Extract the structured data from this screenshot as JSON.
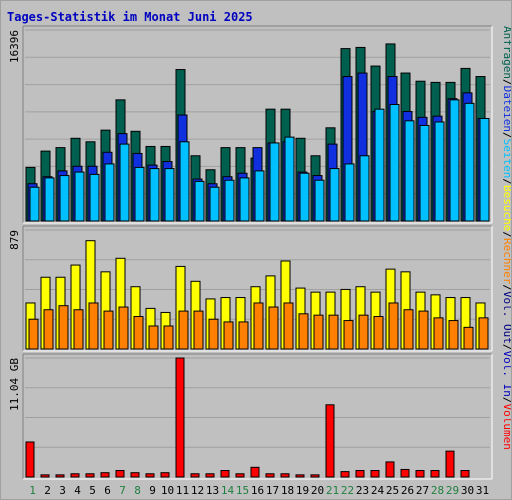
{
  "chart_data": {
    "type": "bar",
    "title": "Tages-Statistik im Monat Juni 2025",
    "colors": {
      "anfragen": "#006050",
      "dateien": "#1030e0",
      "seiten": "#00c0ff",
      "besuche": "#ffff00",
      "rechner": "#ff8000",
      "volumen": "#ff0000",
      "title": "#0000c0",
      "weekend_label": "#208040",
      "weekday_label": "#000000"
    },
    "categories": [
      "1",
      "2",
      "3",
      "4",
      "5",
      "6",
      "7",
      "8",
      "9",
      "10",
      "11",
      "12",
      "13",
      "14",
      "15",
      "16",
      "17",
      "18",
      "19",
      "20",
      "21",
      "22",
      "23",
      "24",
      "25",
      "26",
      "27",
      "28",
      "29",
      "30",
      "31"
    ],
    "weekend_days": [
      "1",
      "7",
      "8",
      "14",
      "15",
      "21",
      "22",
      "28",
      "29"
    ],
    "panels": [
      {
        "id": "top",
        "ymax_label": "16396",
        "ymax": 16396,
        "series": [
          {
            "name": "Anfragen",
            "values": [
              4600,
              6000,
              6300,
              7100,
              6800,
              7800,
              10400,
              7700,
              6400,
              6400,
              13000,
              5600,
              4400,
              6300,
              6300,
              5400,
              9600,
              9600,
              7100,
              5600,
              8000,
              14800,
              14900,
              13300,
              15200,
              12700,
              12000,
              11900,
              11900,
              13100,
              12400
            ]
          },
          {
            "name": "Dateien",
            "values": [
              3200,
              3800,
              4300,
              4700,
              4700,
              5900,
              7500,
              5800,
              4800,
              5100,
              9100,
              3600,
              3200,
              3800,
              4100,
              6300,
              6700,
              6800,
              4200,
              3900,
              6600,
              12400,
              12700,
              9400,
              12400,
              9400,
              8900,
              9000,
              10500,
              11000,
              8800
            ]
          },
          {
            "name": "Seiten",
            "values": [
              2900,
              3700,
              3900,
              4200,
              4000,
              4900,
              6600,
              4600,
              4500,
              4500,
              6800,
              3400,
              2900,
              3500,
              3700,
              4300,
              6700,
              7200,
              4100,
              3500,
              4500,
              4900,
              5600,
              9600,
              10000,
              8600,
              8200,
              8500,
              10400,
              10100,
              8800
            ]
          }
        ],
        "axis_label": [
          "Anfragen",
          "/",
          "Dateien",
          "/",
          "Seiten",
          "/",
          "Besuche",
          "/",
          "Rechner",
          "/",
          "Vol. Out",
          "/",
          "Vol. In",
          "/",
          "Volumen"
        ]
      },
      {
        "id": "middle",
        "ymax_label": "879",
        "ymax": 879,
        "series": [
          {
            "name": "Besuche",
            "values": [
              340,
              530,
              530,
              620,
              800,
              570,
              670,
              460,
              300,
              270,
              610,
              500,
              370,
              380,
              380,
              460,
              540,
              650,
              450,
              420,
              420,
              440,
              460,
              420,
              590,
              570,
              420,
              400,
              380,
              380,
              340
            ]
          },
          {
            "name": "Rechner",
            "values": [
              220,
              290,
              320,
              290,
              340,
              280,
              310,
              240,
              170,
              170,
              280,
              280,
              220,
              200,
              200,
              340,
              310,
              340,
              260,
              250,
              250,
              210,
              250,
              240,
              340,
              290,
              280,
              230,
              210,
              160,
              230
            ]
          }
        ]
      },
      {
        "id": "bottom",
        "ymax_label": "11.04 GB",
        "ymax": 11.04,
        "unit": "GB",
        "series": [
          {
            "name": "Volumen",
            "values": [
              3.25,
              0.2,
              0.2,
              0.3,
              0.3,
              0.4,
              0.6,
              0.4,
              0.3,
              0.4,
              11.04,
              0.3,
              0.3,
              0.6,
              0.3,
              0.9,
              0.3,
              0.3,
              0.2,
              0.2,
              6.7,
              0.5,
              0.6,
              0.6,
              1.4,
              0.7,
              0.6,
              0.6,
              2.4,
              0.6,
              0.0
            ]
          }
        ]
      }
    ]
  }
}
